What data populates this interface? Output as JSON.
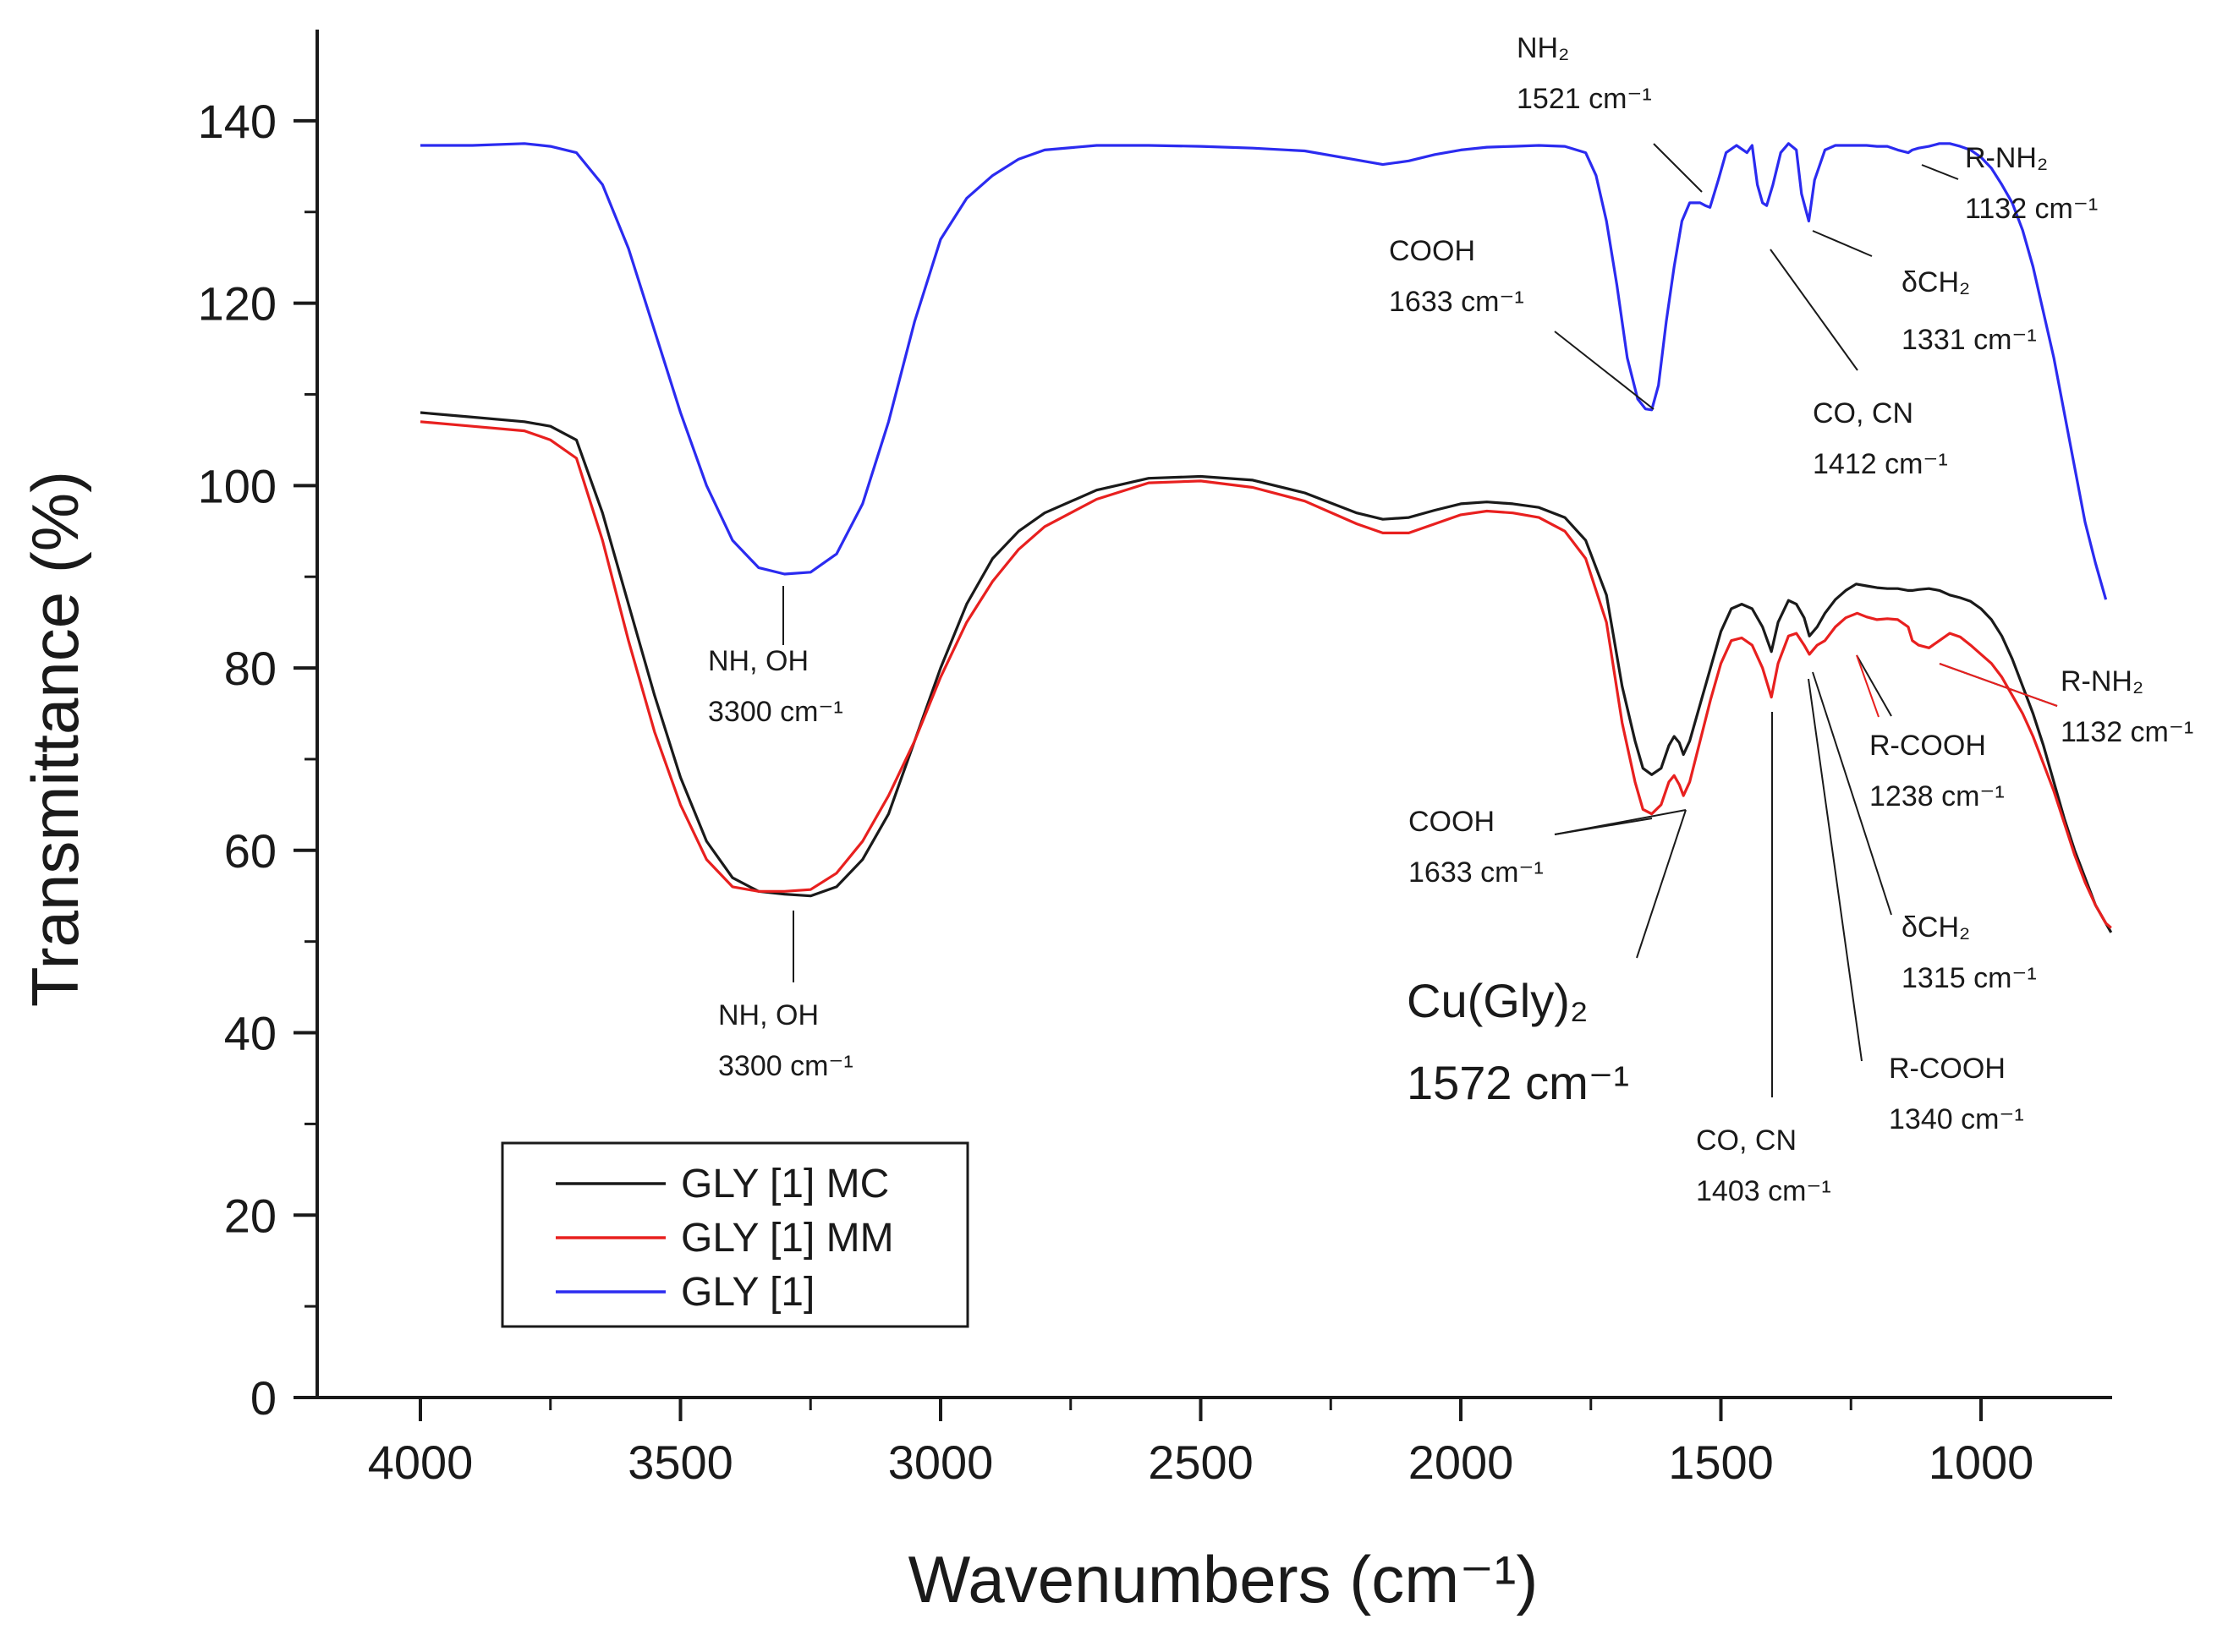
{
  "chart_data": {
    "type": "line",
    "title": "",
    "xlabel": "Wavenumbers (cm⁻¹)",
    "ylabel": "Transmittance (%)",
    "xlim": [
      4200,
      750
    ],
    "ylim": [
      0,
      150
    ],
    "x_reversed": true,
    "grid": false,
    "legend_position": "bottom-left",
    "xticks": [
      4000,
      3500,
      3000,
      2500,
      2000,
      1500,
      1000
    ],
    "yticks": [
      0,
      20,
      40,
      60,
      80,
      100,
      120,
      140
    ],
    "series": [
      {
        "name": "GLY [1] MC",
        "color": "#1a1a1a",
        "x": [
          4000,
          3900,
          3800,
          3750,
          3700,
          3650,
          3600,
          3550,
          3500,
          3450,
          3400,
          3350,
          3300,
          3250,
          3200,
          3150,
          3100,
          3050,
          3000,
          2950,
          2900,
          2850,
          2800,
          2700,
          2600,
          2500,
          2400,
          2300,
          2200,
          2150,
          2100,
          2050,
          2000,
          1950,
          1900,
          1850,
          1800,
          1760,
          1720,
          1690,
          1665,
          1650,
          1633,
          1615,
          1600,
          1590,
          1580,
          1572,
          1560,
          1540,
          1520,
          1500,
          1480,
          1460,
          1440,
          1420,
          1403,
          1390,
          1370,
          1355,
          1340,
          1330,
          1315,
          1300,
          1280,
          1260,
          1240,
          1220,
          1200,
          1180,
          1160,
          1140,
          1132,
          1120,
          1100,
          1080,
          1060,
          1040,
          1020,
          1000,
          980,
          960,
          940,
          920,
          900,
          880,
          860,
          840,
          820,
          800,
          780,
          760,
          750
        ],
        "y": [
          108,
          107.5,
          107,
          106.5,
          105,
          97,
          87,
          77,
          68,
          61,
          57,
          55.5,
          55.2,
          55,
          56,
          59,
          64,
          72,
          80,
          87,
          92,
          95,
          97,
          99.5,
          100.8,
          101,
          100.6,
          99.2,
          97,
          96.3,
          96.5,
          97.3,
          98,
          98.2,
          98,
          97.6,
          96.5,
          94,
          88,
          78,
          72,
          69,
          68.3,
          69,
          71.5,
          72.5,
          71.8,
          70.5,
          72,
          76,
          80,
          84,
          86.5,
          87,
          86.5,
          84.5,
          81.8,
          85,
          87.4,
          87,
          85.5,
          83.5,
          84.5,
          86,
          87.5,
          88.5,
          89.2,
          89,
          88.8,
          88.7,
          88.7,
          88.5,
          88.5,
          88.6,
          88.7,
          88.5,
          88,
          87.7,
          87.3,
          86.5,
          85.3,
          83.5,
          81,
          78,
          75,
          71.5,
          67.5,
          63.5,
          60,
          57,
          54,
          52,
          51
        ]
      },
      {
        "name": "GLY [1] MM",
        "color": "#e8201f",
        "x": [
          4000,
          3900,
          3800,
          3750,
          3700,
          3650,
          3600,
          3550,
          3500,
          3450,
          3400,
          3350,
          3300,
          3250,
          3200,
          3150,
          3100,
          3050,
          3000,
          2950,
          2900,
          2850,
          2800,
          2700,
          2600,
          2500,
          2400,
          2300,
          2200,
          2150,
          2100,
          2050,
          2000,
          1950,
          1900,
          1850,
          1800,
          1760,
          1720,
          1690,
          1665,
          1650,
          1633,
          1615,
          1600,
          1590,
          1580,
          1572,
          1560,
          1540,
          1520,
          1500,
          1480,
          1460,
          1440,
          1420,
          1403,
          1390,
          1370,
          1355,
          1340,
          1330,
          1315,
          1300,
          1280,
          1260,
          1238,
          1220,
          1200,
          1180,
          1160,
          1140,
          1132,
          1120,
          1100,
          1080,
          1060,
          1040,
          1020,
          1000,
          980,
          960,
          940,
          920,
          900,
          880,
          860,
          840,
          820,
          800,
          780,
          760,
          750
        ],
        "y": [
          107,
          106.5,
          106,
          105,
          103,
          94,
          83,
          73,
          65,
          59,
          56,
          55.5,
          55.5,
          55.7,
          57.5,
          61,
          66,
          72,
          79,
          85,
          89.5,
          93,
          95.5,
          98.5,
          100.3,
          100.5,
          99.8,
          98.3,
          95.8,
          94.8,
          94.8,
          95.8,
          96.8,
          97.2,
          97,
          96.5,
          95,
          92,
          85,
          74,
          67.5,
          64.5,
          64,
          65,
          67.5,
          68.2,
          67.2,
          66,
          67.5,
          72,
          76.5,
          80.5,
          83,
          83.3,
          82.5,
          80,
          76.8,
          80.5,
          83.5,
          83.8,
          82.5,
          81.5,
          82.5,
          83,
          84.5,
          85.5,
          86,
          85.6,
          85.3,
          85.4,
          85.3,
          84.5,
          83,
          82.5,
          82.2,
          83,
          83.8,
          83.4,
          82.5,
          81.5,
          80.5,
          79,
          77,
          75,
          72.5,
          69.5,
          66.5,
          63,
          59.5,
          56.5,
          54,
          52,
          51.5
        ]
      },
      {
        "name": "GLY [1]",
        "color": "#2b2bf0",
        "x": [
          4000,
          3900,
          3800,
          3750,
          3700,
          3650,
          3600,
          3550,
          3500,
          3450,
          3400,
          3350,
          3300,
          3250,
          3200,
          3150,
          3100,
          3050,
          3000,
          2950,
          2900,
          2850,
          2800,
          2700,
          2600,
          2500,
          2400,
          2300,
          2200,
          2150,
          2100,
          2050,
          2000,
          1950,
          1900,
          1850,
          1800,
          1760,
          1740,
          1720,
          1700,
          1680,
          1660,
          1645,
          1633,
          1620,
          1605,
          1590,
          1575,
          1560,
          1540,
          1530,
          1521,
          1505,
          1490,
          1470,
          1450,
          1440,
          1430,
          1420,
          1412,
          1400,
          1385,
          1370,
          1355,
          1345,
          1331,
          1320,
          1300,
          1280,
          1260,
          1240,
          1220,
          1200,
          1180,
          1160,
          1140,
          1132,
          1120,
          1100,
          1080,
          1060,
          1040,
          1020,
          1000,
          980,
          960,
          940,
          920,
          900,
          880,
          860,
          840,
          820,
          800,
          780,
          760
        ],
        "y": [
          137.3,
          137.3,
          137.5,
          137.2,
          136.5,
          133,
          126,
          117,
          108,
          100,
          94,
          91,
          90.3,
          90.5,
          92.5,
          98,
          107,
          118,
          127,
          131.5,
          134,
          135.8,
          136.8,
          137.3,
          137.3,
          137.2,
          137,
          136.7,
          135.7,
          135.2,
          135.6,
          136.3,
          136.8,
          137.1,
          137.2,
          137.3,
          137.2,
          136.5,
          134,
          129,
          122,
          114,
          109.5,
          108.4,
          108.3,
          111,
          118,
          124,
          129,
          131,
          131,
          130.7,
          130.5,
          133.5,
          136.5,
          137.3,
          136.5,
          137.3,
          133,
          131,
          130.7,
          133,
          136.5,
          137.5,
          136.8,
          132,
          129,
          133.5,
          136.8,
          137.3,
          137.3,
          137.3,
          137.3,
          137.2,
          137.2,
          136.8,
          136.5,
          136.8,
          137,
          137.2,
          137.5,
          137.5,
          137.2,
          136.8,
          136,
          134.8,
          133,
          131,
          128,
          124,
          119,
          114,
          108,
          102,
          96,
          91.5,
          87.5
        ]
      }
    ],
    "annotations": [
      {
        "text": "NH₂",
        "label2": "1521 cm⁻¹"
      },
      {
        "text": "COOH",
        "label2": "1633 cm⁻¹"
      },
      {
        "text": "δCH₂",
        "label2": "1331 cm⁻¹"
      },
      {
        "text": "CO, CN",
        "label2": "1412 cm⁻¹"
      },
      {
        "text": "R-NH₂",
        "label2": "1132 cm⁻¹"
      },
      {
        "text": "NH, OH",
        "label2": "3300 cm⁻¹"
      },
      {
        "text": "NH, OH",
        "label2": "3300 cm⁻¹"
      },
      {
        "text": "COOH",
        "label2": "1633 cm⁻¹"
      },
      {
        "text": "Cu(Gly)₂",
        "label2": "1572 cm⁻¹"
      },
      {
        "text": "CO, CN",
        "label2": "1403 cm⁻¹"
      },
      {
        "text": "R-COOH",
        "label2": "1340 cm⁻¹"
      },
      {
        "text": "δCH₂",
        "label2": "1315 cm⁻¹"
      },
      {
        "text": "R-COOH",
        "label2": "1238 cm⁻¹"
      },
      {
        "text": "R-NH₂",
        "label2": "1132 cm⁻¹"
      }
    ]
  }
}
